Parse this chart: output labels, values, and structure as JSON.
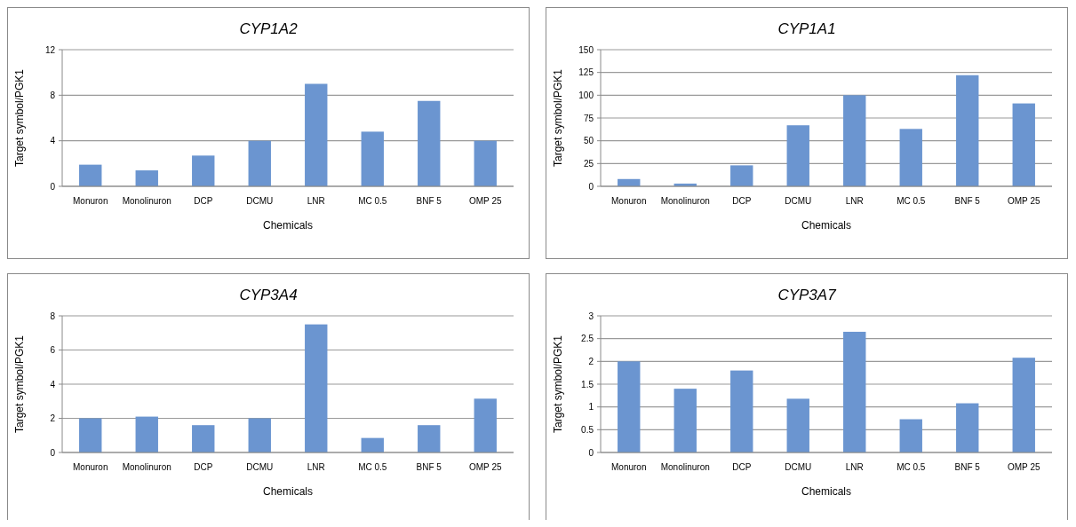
{
  "chart_data": [
    {
      "type": "bar",
      "title": "CYP1A2",
      "xlabel": "Chemicals",
      "ylabel": "Target symbol/PGK1",
      "categories": [
        "Monuron",
        "Monolinuron",
        "DCP",
        "DCMU",
        "LNR",
        "MC 0.5",
        "BNF 5",
        "OMP 25"
      ],
      "values": [
        1.9,
        1.4,
        2.7,
        4.0,
        9.0,
        4.8,
        7.5,
        4.0
      ],
      "color": "#6b95d0",
      "ylim": [
        0,
        12
      ],
      "yticks": [
        0,
        4,
        8,
        12
      ],
      "grid": "y"
    },
    {
      "type": "bar",
      "title": "CYP1A1",
      "xlabel": "Chemicals",
      "ylabel": "Target symbol/PGK1",
      "categories": [
        "Monuron",
        "Monolinuron",
        "DCP",
        "DCMU",
        "LNR",
        "MC 0.5",
        "BNF 5",
        "OMP 25"
      ],
      "values": [
        8,
        3,
        23,
        67,
        100,
        63,
        122,
        91
      ],
      "color": "#6b95d0",
      "ylim": [
        0,
        150
      ],
      "yticks": [
        0,
        25,
        50,
        75,
        100,
        125,
        150
      ],
      "grid": "y"
    },
    {
      "type": "bar",
      "title": "CYP3A4",
      "xlabel": "Chemicals",
      "ylabel": "Target symbol/PGK1",
      "categories": [
        "Monuron",
        "Monolinuron",
        "DCP",
        "DCMU",
        "LNR",
        "MC 0.5",
        "BNF 5",
        "OMP 25"
      ],
      "values": [
        2.0,
        2.1,
        1.6,
        2.0,
        7.5,
        0.85,
        1.6,
        3.15
      ],
      "color": "#6b95d0",
      "ylim": [
        0,
        8
      ],
      "yticks": [
        0,
        2,
        4,
        6,
        8
      ],
      "grid": "y"
    },
    {
      "type": "bar",
      "title": "CYP3A7",
      "xlabel": "Chemicals",
      "ylabel": "Target symbol/PGK1",
      "categories": [
        "Monuron",
        "Monolinuron",
        "DCP",
        "DCMU",
        "LNR",
        "MC 0.5",
        "BNF 5",
        "OMP 25"
      ],
      "values": [
        2.0,
        1.4,
        1.8,
        1.18,
        2.65,
        0.73,
        1.08,
        2.08
      ],
      "color": "#6b95d0",
      "ylim": [
        0,
        3
      ],
      "yticks": [
        0,
        0.5,
        1,
        1.5,
        2,
        2.5,
        3
      ],
      "grid": "y"
    }
  ]
}
